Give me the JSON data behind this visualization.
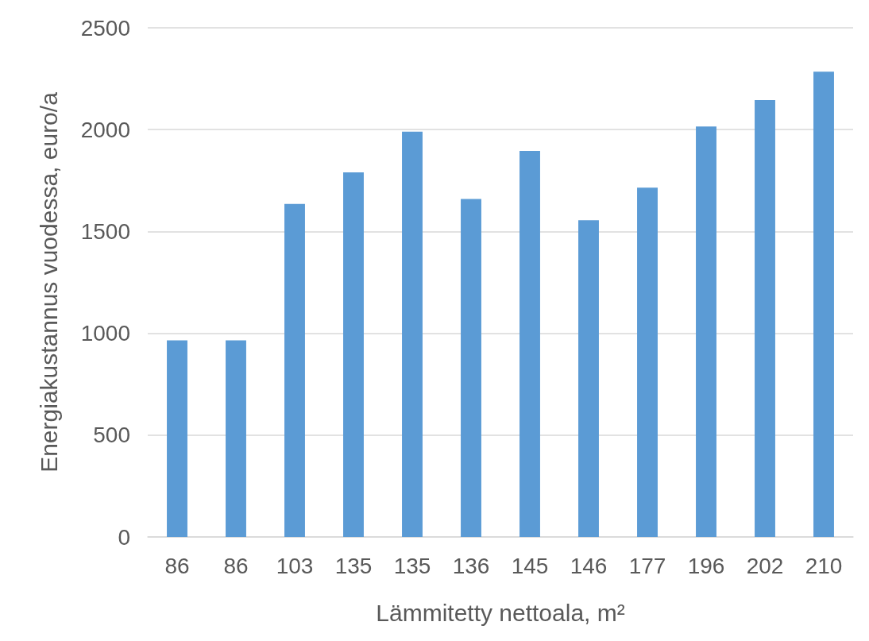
{
  "chart_data": {
    "type": "bar",
    "xlabel": "Lämmitetty nettoala, m²",
    "ylabel": "Energiakustannus vuodessa, euro/a",
    "categories": [
      "86",
      "86",
      "103",
      "135",
      "135",
      "136",
      "145",
      "146",
      "177",
      "196",
      "202",
      "210"
    ],
    "values": [
      965,
      965,
      1635,
      1790,
      1990,
      1660,
      1895,
      1555,
      1715,
      2015,
      2145,
      2285
    ],
    "color": "#5b9bd5",
    "ylim": [
      0,
      2500
    ],
    "yticks": [
      0,
      500,
      1000,
      1500,
      2000,
      2500
    ],
    "grid": "y"
  }
}
